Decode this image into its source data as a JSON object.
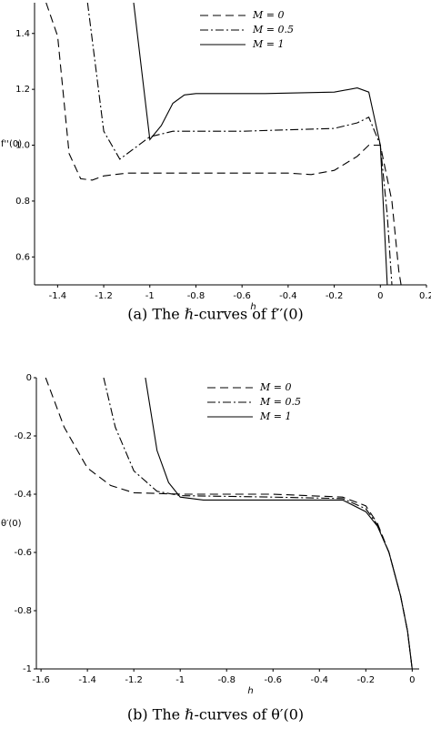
{
  "chart_data": [
    {
      "type": "line",
      "x_label": "h",
      "y_label": "f''(0)",
      "caption": "(a)  The ℏ-curves of f′′(0)",
      "xlim": [
        -1.5,
        0.2
      ],
      "ylim": [
        0.5,
        1.51
      ],
      "xticks": [
        -1.4,
        -1.2,
        -1,
        -0.8,
        -0.6,
        -0.4,
        -0.2,
        0,
        0.2
      ],
      "yticks": [
        0.6,
        0.8,
        {
          "value": 1,
          "label": "1.0"
        },
        1.2,
        1.4
      ],
      "series": [
        {
          "name": "M = 0",
          "color": "#000000",
          "dash": "dashed",
          "x": [
            -1.45,
            -1.4,
            -1.35,
            -1.3,
            -1.25,
            -1.2,
            -1.1,
            -0.8,
            -0.4,
            -0.3,
            -0.2,
            -0.1,
            -0.05,
            0,
            0.05,
            0.08,
            0.09
          ],
          "values": [
            1.51,
            1.39,
            0.97,
            0.88,
            0.875,
            0.89,
            0.9,
            0.9,
            0.9,
            0.895,
            0.91,
            0.96,
            1.0,
            1.0,
            0.8,
            0.55,
            0.5
          ]
        },
        {
          "name": "M = 0.5",
          "color": "#000000",
          "dash": "dashdot",
          "x": [
            -1.27,
            -1.2,
            -1.13,
            -1.0,
            -0.9,
            -0.6,
            -0.2,
            -0.1,
            -0.05,
            0,
            0.03,
            0.05
          ],
          "values": [
            1.51,
            1.05,
            0.95,
            1.03,
            1.05,
            1.05,
            1.06,
            1.08,
            1.1,
            1.0,
            0.75,
            0.5
          ]
        },
        {
          "name": "M = 1",
          "color": "#000000",
          "dash": "solid",
          "x": [
            -1.07,
            -1.0,
            -0.95,
            -0.9,
            -0.85,
            -0.8,
            -0.5,
            -0.2,
            -0.1,
            -0.05,
            0,
            0.03
          ],
          "values": [
            1.51,
            1.02,
            1.07,
            1.15,
            1.18,
            1.185,
            1.185,
            1.19,
            1.205,
            1.19,
            1.0,
            0.5
          ]
        }
      ]
    },
    {
      "type": "line",
      "x_label": "h",
      "y_label": "θ′(0)",
      "caption": "(b)  The ℏ-curves of θ′(0)",
      "xlim": [
        -1.62,
        0.03
      ],
      "ylim": [
        -1,
        0
      ],
      "xticks": [
        -1.6,
        -1.4,
        -1.2,
        -1,
        -0.8,
        -0.6,
        -0.4,
        -0.2,
        0
      ],
      "yticks": [
        -1,
        -0.8,
        -0.6,
        -0.4,
        -0.2,
        0
      ],
      "series": [
        {
          "name": "M = 0",
          "color": "#000000",
          "dash": "dashed",
          "x": [
            -1.58,
            -1.5,
            -1.4,
            -1.3,
            -1.2,
            -1.0,
            -0.6,
            -0.3,
            -0.2,
            -0.15,
            -0.1,
            -0.05,
            -0.02,
            0
          ],
          "values": [
            0,
            -0.17,
            -0.31,
            -0.37,
            -0.395,
            -0.4,
            -0.4,
            -0.41,
            -0.44,
            -0.5,
            -0.6,
            -0.75,
            -0.87,
            -1
          ]
        },
        {
          "name": "M = 0.5",
          "color": "#000000",
          "dash": "dashdot",
          "x": [
            -1.33,
            -1.28,
            -1.2,
            -1.1,
            -1.0,
            -0.6,
            -0.3,
            -0.2,
            -0.15,
            -0.1,
            -0.05,
            -0.02,
            0
          ],
          "values": [
            0,
            -0.17,
            -0.32,
            -0.39,
            -0.405,
            -0.41,
            -0.415,
            -0.45,
            -0.505,
            -0.6,
            -0.75,
            -0.87,
            -1
          ]
        },
        {
          "name": "M = 1",
          "color": "#000000",
          "dash": "solid",
          "x": [
            -1.15,
            -1.1,
            -1.05,
            -1.0,
            -0.9,
            -0.3,
            -0.2,
            -0.15,
            -0.1,
            -0.05,
            -0.02,
            0
          ],
          "values": [
            0,
            -0.25,
            -0.36,
            -0.41,
            -0.42,
            -0.42,
            -0.46,
            -0.51,
            -0.6,
            -0.75,
            -0.87,
            -1
          ]
        }
      ]
    }
  ]
}
